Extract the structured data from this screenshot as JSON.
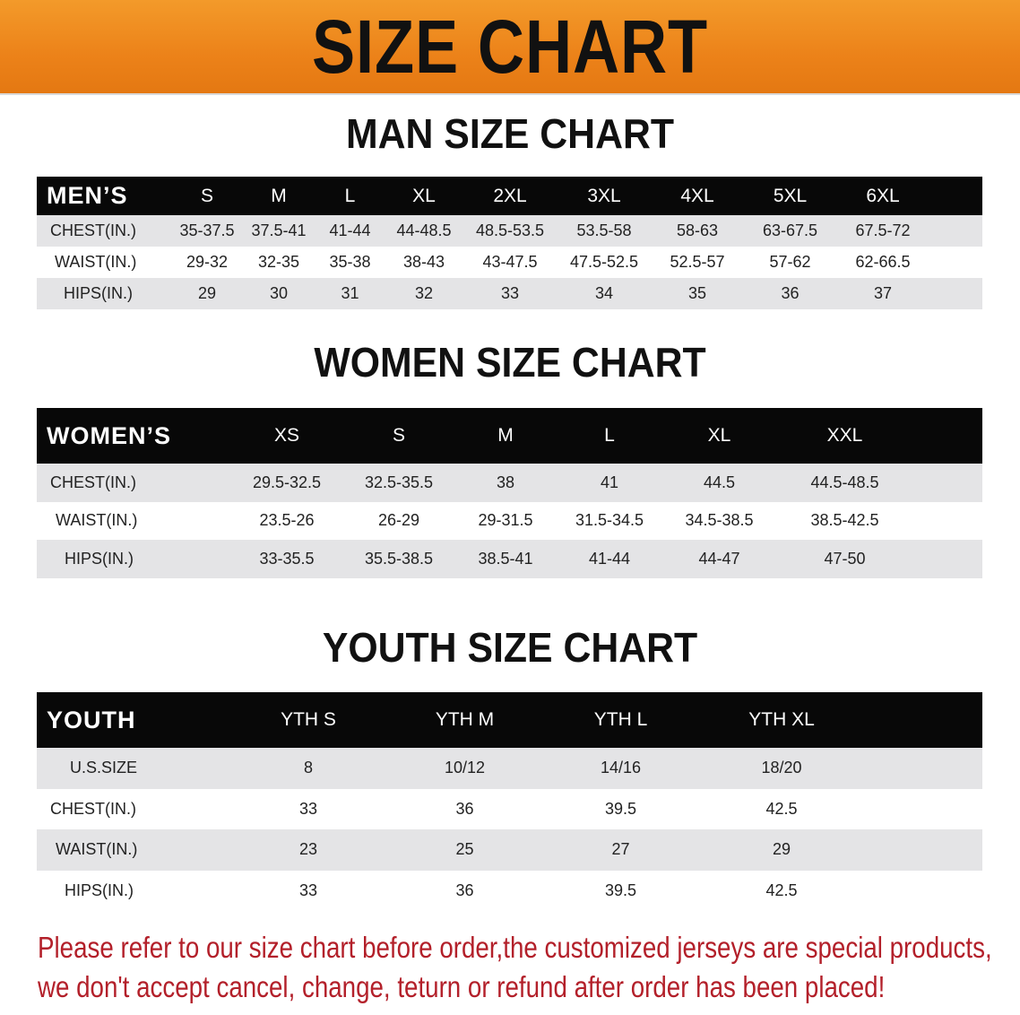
{
  "banner": {
    "title": "SIZE CHART",
    "color": "#ec8219"
  },
  "men": {
    "title": "MAN SIZE CHART",
    "header": [
      "MEN’S",
      "S",
      "M",
      "L",
      "XL",
      "2XL",
      "3XL",
      "4XL",
      "5XL",
      "6XL"
    ],
    "rows": [
      [
        "CHEST(IN.)",
        "35-37.5",
        "37.5-41",
        "41-44",
        "44-48.5",
        "48.5-53.5",
        "53.5-58",
        "58-63",
        "63-67.5",
        "67.5-72"
      ],
      [
        "WAIST(IN.)",
        "29-32",
        "32-35",
        "35-38",
        "38-43",
        "43-47.5",
        "47.5-52.5",
        "52.5-57",
        "57-62",
        "62-66.5"
      ],
      [
        "HIPS(IN.)",
        "29",
        "30",
        "31",
        "32",
        "33",
        "34",
        "35",
        "36",
        "37"
      ]
    ]
  },
  "women": {
    "title": "WOMEN SIZE CHART",
    "header": [
      "WOMEN’S",
      "XS",
      "S",
      "M",
      "L",
      "XL",
      "XXL"
    ],
    "rows": [
      [
        "CHEST(IN.)",
        "29.5-32.5",
        "32.5-35.5",
        "38",
        "41",
        "44.5",
        "44.5-48.5"
      ],
      [
        "WAIST(IN.)",
        "23.5-26",
        "26-29",
        "29-31.5",
        "31.5-34.5",
        "34.5-38.5",
        "38.5-42.5"
      ],
      [
        "HIPS(IN.)",
        "33-35.5",
        "35.5-38.5",
        "38.5-41",
        "41-44",
        "44-47",
        "47-50"
      ]
    ]
  },
  "youth": {
    "title": "YOUTH SIZE CHART",
    "header": [
      "YOUTH",
      "YTH S",
      "YTH M",
      "YTH L",
      "YTH XL"
    ],
    "rows": [
      [
        "U.S.SIZE",
        "8",
        "10/12",
        "14/16",
        "18/20"
      ],
      [
        "CHEST(IN.)",
        "33",
        "36",
        "39.5",
        "42.5"
      ],
      [
        "WAIST(IN.)",
        "23",
        "25",
        "27",
        "29"
      ],
      [
        "HIPS(IN.)",
        "33",
        "36",
        "39.5",
        "42.5"
      ]
    ]
  },
  "notice": {
    "line1": "Please refer to our size chart before order,the customized jerseys are special products,",
    "line2": "we don't accept cancel, change, teturn or refund after order has been placed!",
    "color": "#b3202a"
  }
}
